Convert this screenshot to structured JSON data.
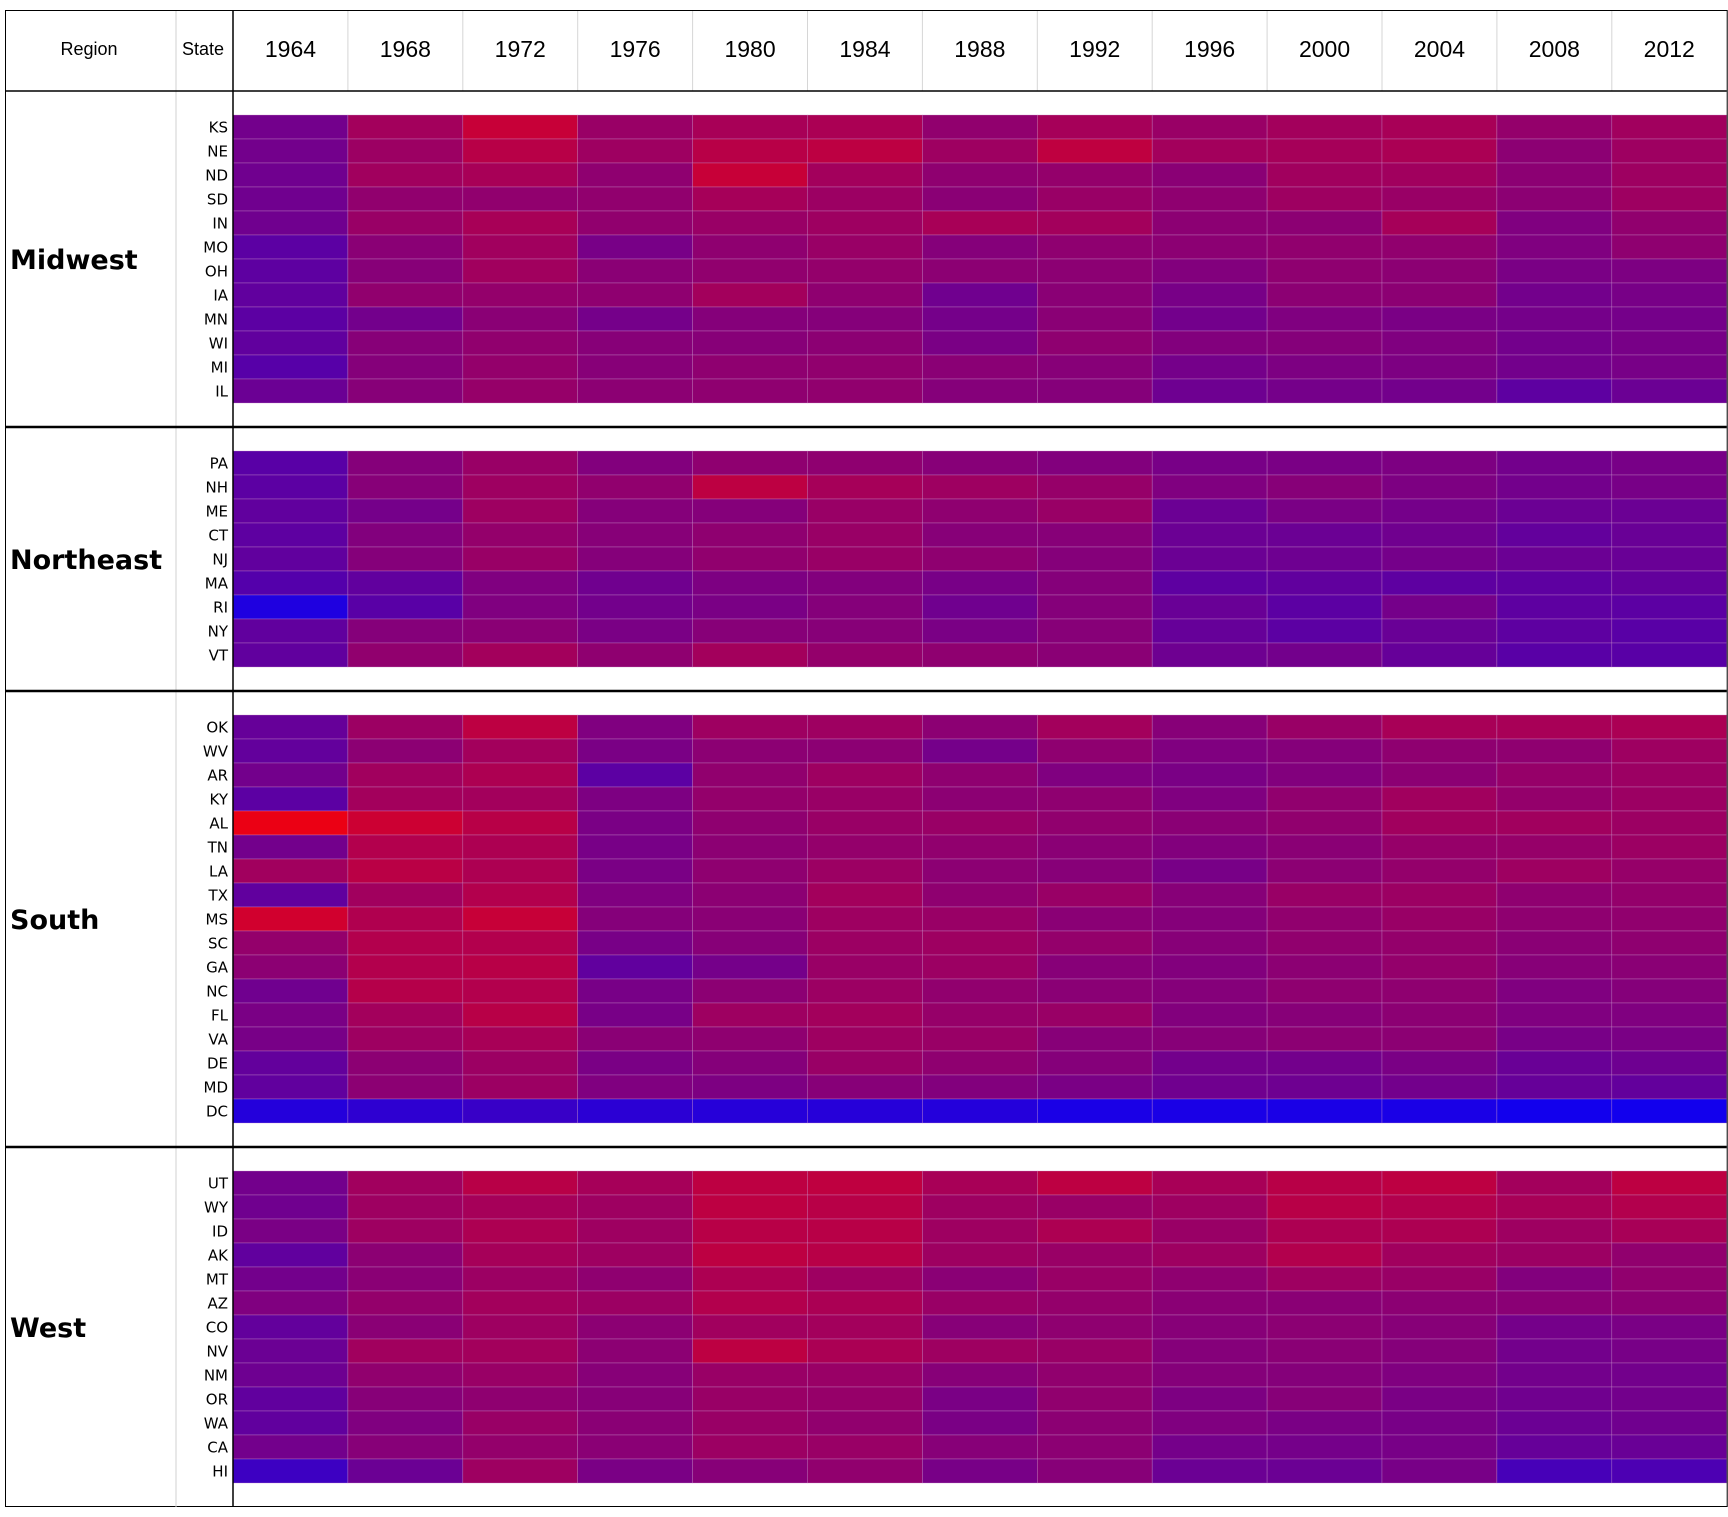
{
  "chart_data": {
    "type": "heatmap",
    "header": {
      "region_label": "Region",
      "state_label": "State"
    },
    "years": [
      "1964",
      "1968",
      "1972",
      "1976",
      "1980",
      "1984",
      "1988",
      "1992",
      "1996",
      "2000",
      "2004",
      "2008",
      "2012"
    ],
    "color_scale": {
      "low": "#0000ff",
      "high": "#ff0000"
    },
    "regions": [
      {
        "name": "Midwest",
        "states": [
          {
            "state": "KS",
            "values": [
              0.45,
              0.64,
              0.78,
              0.6,
              0.66,
              0.67,
              0.57,
              0.65,
              0.6,
              0.64,
              0.66,
              0.58,
              0.63
            ]
          },
          {
            "state": "NE",
            "values": [
              0.45,
              0.61,
              0.72,
              0.62,
              0.72,
              0.74,
              0.62,
              0.75,
              0.64,
              0.65,
              0.67,
              0.55,
              0.62
            ]
          },
          {
            "state": "ND",
            "values": [
              0.44,
              0.63,
              0.66,
              0.56,
              0.78,
              0.64,
              0.56,
              0.58,
              0.54,
              0.63,
              0.63,
              0.55,
              0.62
            ]
          },
          {
            "state": "SD",
            "values": [
              0.44,
              0.57,
              0.57,
              0.57,
              0.65,
              0.61,
              0.54,
              0.6,
              0.56,
              0.62,
              0.6,
              0.55,
              0.62
            ]
          },
          {
            "state": "IN",
            "values": [
              0.44,
              0.6,
              0.66,
              0.57,
              0.6,
              0.62,
              0.66,
              0.64,
              0.55,
              0.55,
              0.65,
              0.5,
              0.57
            ]
          },
          {
            "state": "MO",
            "values": [
              0.36,
              0.54,
              0.63,
              0.47,
              0.56,
              0.6,
              0.52,
              0.56,
              0.55,
              0.57,
              0.57,
              0.5,
              0.56
            ]
          },
          {
            "state": "OH",
            "values": [
              0.37,
              0.53,
              0.63,
              0.54,
              0.57,
              0.58,
              0.55,
              0.55,
              0.51,
              0.56,
              0.55,
              0.48,
              0.49
            ]
          },
          {
            "state": "IA",
            "values": [
              0.38,
              0.57,
              0.58,
              0.56,
              0.64,
              0.56,
              0.44,
              0.54,
              0.47,
              0.55,
              0.55,
              0.45,
              0.47
            ]
          },
          {
            "state": "MN",
            "values": [
              0.36,
              0.45,
              0.54,
              0.46,
              0.52,
              0.52,
              0.46,
              0.54,
              0.45,
              0.5,
              0.48,
              0.46,
              0.46
            ]
          },
          {
            "state": "WI",
            "values": [
              0.38,
              0.53,
              0.57,
              0.53,
              0.53,
              0.55,
              0.48,
              0.56,
              0.51,
              0.52,
              0.5,
              0.45,
              0.47
            ]
          },
          {
            "state": "MI",
            "values": [
              0.34,
              0.52,
              0.58,
              0.53,
              0.56,
              0.57,
              0.54,
              0.53,
              0.46,
              0.49,
              0.49,
              0.45,
              0.47
            ]
          },
          {
            "state": "IL",
            "values": [
              0.42,
              0.53,
              0.59,
              0.55,
              0.56,
              0.57,
              0.52,
              0.52,
              0.43,
              0.46,
              0.45,
              0.37,
              0.42
            ]
          }
        ]
      },
      {
        "name": "Northeast",
        "states": [
          {
            "state": "PA",
            "values": [
              0.35,
              0.52,
              0.6,
              0.51,
              0.56,
              0.56,
              0.53,
              0.51,
              0.47,
              0.48,
              0.49,
              0.45,
              0.47
            ]
          },
          {
            "state": "NH",
            "values": [
              0.36,
              0.53,
              0.62,
              0.57,
              0.74,
              0.65,
              0.62,
              0.59,
              0.5,
              0.53,
              0.49,
              0.45,
              0.47
            ]
          },
          {
            "state": "ME",
            "values": [
              0.38,
              0.46,
              0.62,
              0.52,
              0.52,
              0.6,
              0.56,
              0.6,
              0.42,
              0.48,
              0.46,
              0.42,
              0.42
            ]
          },
          {
            "state": "CT",
            "values": [
              0.37,
              0.51,
              0.58,
              0.53,
              0.56,
              0.6,
              0.53,
              0.53,
              0.42,
              0.42,
              0.44,
              0.39,
              0.41
            ]
          },
          {
            "state": "NJ",
            "values": [
              0.38,
              0.52,
              0.6,
              0.52,
              0.57,
              0.6,
              0.56,
              0.52,
              0.42,
              0.43,
              0.46,
              0.42,
              0.41
            ]
          },
          {
            "state": "MA",
            "values": [
              0.33,
              0.38,
              0.5,
              0.44,
              0.49,
              0.51,
              0.47,
              0.52,
              0.37,
              0.38,
              0.37,
              0.37,
              0.39
            ]
          },
          {
            "state": "RI",
            "values": [
              0.12,
              0.35,
              0.5,
              0.45,
              0.48,
              0.52,
              0.44,
              0.52,
              0.41,
              0.36,
              0.46,
              0.37,
              0.36
            ]
          },
          {
            "state": "NY",
            "values": [
              0.38,
              0.52,
              0.54,
              0.48,
              0.53,
              0.53,
              0.48,
              0.53,
              0.4,
              0.36,
              0.41,
              0.37,
              0.35
            ]
          },
          {
            "state": "VT",
            "values": [
              0.38,
              0.57,
              0.64,
              0.56,
              0.64,
              0.58,
              0.56,
              0.54,
              0.43,
              0.45,
              0.4,
              0.35,
              0.35
            ]
          }
        ]
      },
      {
        "name": "South",
        "states": [
          {
            "state": "OK",
            "values": [
              0.4,
              0.61,
              0.74,
              0.5,
              0.62,
              0.62,
              0.55,
              0.64,
              0.53,
              0.6,
              0.66,
              0.66,
              0.67
            ]
          },
          {
            "state": "WV",
            "values": [
              0.39,
              0.55,
              0.64,
              0.48,
              0.55,
              0.55,
              0.46,
              0.56,
              0.5,
              0.52,
              0.56,
              0.56,
              0.62
            ]
          },
          {
            "state": "AR",
            "values": [
              0.45,
              0.63,
              0.68,
              0.36,
              0.57,
              0.62,
              0.56,
              0.5,
              0.48,
              0.51,
              0.55,
              0.59,
              0.61
            ]
          },
          {
            "state": "KY",
            "values": [
              0.36,
              0.64,
              0.64,
              0.49,
              0.58,
              0.6,
              0.55,
              0.56,
              0.5,
              0.57,
              0.63,
              0.58,
              0.61
            ]
          },
          {
            "state": "AL",
            "values": [
              0.92,
              0.8,
              0.72,
              0.48,
              0.56,
              0.6,
              0.6,
              0.57,
              0.54,
              0.57,
              0.63,
              0.63,
              0.61
            ]
          },
          {
            "state": "TN",
            "values": [
              0.45,
              0.7,
              0.68,
              0.47,
              0.55,
              0.58,
              0.57,
              0.54,
              0.51,
              0.54,
              0.59,
              0.59,
              0.61
            ]
          },
          {
            "state": "LA",
            "values": [
              0.63,
              0.73,
              0.68,
              0.48,
              0.56,
              0.61,
              0.55,
              0.53,
              0.47,
              0.55,
              0.58,
              0.62,
              0.59
            ]
          },
          {
            "state": "TX",
            "values": [
              0.38,
              0.63,
              0.7,
              0.5,
              0.55,
              0.64,
              0.56,
              0.6,
              0.53,
              0.6,
              0.61,
              0.56,
              0.58
            ]
          },
          {
            "state": "MS",
            "values": [
              0.82,
              0.69,
              0.78,
              0.52,
              0.54,
              0.62,
              0.6,
              0.54,
              0.52,
              0.57,
              0.6,
              0.56,
              0.57
            ]
          },
          {
            "state": "SC",
            "values": [
              0.58,
              0.7,
              0.7,
              0.47,
              0.53,
              0.61,
              0.62,
              0.58,
              0.53,
              0.57,
              0.58,
              0.54,
              0.56
            ]
          },
          {
            "state": "GA",
            "values": [
              0.55,
              0.7,
              0.72,
              0.38,
              0.46,
              0.6,
              0.61,
              0.53,
              0.51,
              0.55,
              0.58,
              0.53,
              0.54
            ]
          },
          {
            "state": "NC",
            "values": [
              0.44,
              0.71,
              0.7,
              0.47,
              0.55,
              0.61,
              0.57,
              0.54,
              0.52,
              0.56,
              0.56,
              0.5,
              0.52
            ]
          },
          {
            "state": "FL",
            "values": [
              0.48,
              0.64,
              0.72,
              0.47,
              0.62,
              0.64,
              0.59,
              0.6,
              0.51,
              0.53,
              0.55,
              0.5,
              0.5
            ]
          },
          {
            "state": "VA",
            "values": [
              0.47,
              0.62,
              0.66,
              0.54,
              0.56,
              0.62,
              0.6,
              0.53,
              0.53,
              0.55,
              0.55,
              0.47,
              0.48
            ]
          },
          {
            "state": "DE",
            "values": [
              0.39,
              0.55,
              0.61,
              0.48,
              0.52,
              0.6,
              0.56,
              0.52,
              0.45,
              0.45,
              0.48,
              0.41,
              0.43
            ]
          },
          {
            "state": "MD",
            "values": [
              0.38,
              0.55,
              0.61,
              0.5,
              0.49,
              0.53,
              0.51,
              0.48,
              0.44,
              0.43,
              0.45,
              0.4,
              0.39
            ]
          },
          {
            "state": "DC",
            "values": [
              0.14,
              0.18,
              0.22,
              0.17,
              0.15,
              0.15,
              0.14,
              0.1,
              0.1,
              0.1,
              0.1,
              0.07,
              0.07
            ]
          }
        ]
      },
      {
        "name": "West",
        "states": [
          {
            "state": "UT",
            "values": [
              0.45,
              0.63,
              0.72,
              0.65,
              0.74,
              0.75,
              0.66,
              0.74,
              0.66,
              0.72,
              0.74,
              0.64,
              0.74
            ]
          },
          {
            "state": "WY",
            "values": [
              0.44,
              0.62,
              0.65,
              0.62,
              0.74,
              0.72,
              0.62,
              0.6,
              0.62,
              0.72,
              0.7,
              0.66,
              0.7
            ]
          },
          {
            "state": "ID",
            "values": [
              0.48,
              0.62,
              0.68,
              0.62,
              0.72,
              0.72,
              0.62,
              0.68,
              0.6,
              0.68,
              0.68,
              0.62,
              0.66
            ]
          },
          {
            "state": "AK",
            "values": [
              0.38,
              0.55,
              0.65,
              0.62,
              0.74,
              0.72,
              0.62,
              0.6,
              0.62,
              0.7,
              0.63,
              0.61,
              0.57
            ]
          },
          {
            "state": "MT",
            "values": [
              0.45,
              0.54,
              0.61,
              0.56,
              0.68,
              0.62,
              0.54,
              0.6,
              0.56,
              0.62,
              0.6,
              0.51,
              0.57
            ]
          },
          {
            "state": "AZ",
            "values": [
              0.5,
              0.58,
              0.64,
              0.61,
              0.7,
              0.67,
              0.6,
              0.58,
              0.54,
              0.54,
              0.55,
              0.54,
              0.55
            ]
          },
          {
            "state": "CO",
            "values": [
              0.39,
              0.54,
              0.62,
              0.55,
              0.63,
              0.64,
              0.53,
              0.56,
              0.53,
              0.55,
              0.53,
              0.46,
              0.48
            ]
          },
          {
            "state": "NV",
            "values": [
              0.42,
              0.63,
              0.64,
              0.55,
              0.74,
              0.67,
              0.62,
              0.6,
              0.52,
              0.54,
              0.52,
              0.45,
              0.47
            ]
          },
          {
            "state": "NM",
            "values": [
              0.43,
              0.57,
              0.6,
              0.53,
              0.6,
              0.6,
              0.53,
              0.57,
              0.52,
              0.52,
              0.5,
              0.45,
              0.45
            ]
          },
          {
            "state": "OR",
            "values": [
              0.38,
              0.53,
              0.56,
              0.53,
              0.6,
              0.59,
              0.48,
              0.57,
              0.49,
              0.53,
              0.48,
              0.44,
              0.45
            ]
          },
          {
            "state": "WA",
            "values": [
              0.38,
              0.5,
              0.6,
              0.54,
              0.6,
              0.57,
              0.48,
              0.55,
              0.5,
              0.48,
              0.47,
              0.42,
              0.44
            ]
          },
          {
            "state": "CA",
            "values": [
              0.45,
              0.53,
              0.58,
              0.54,
              0.61,
              0.6,
              0.53,
              0.55,
              0.46,
              0.46,
              0.47,
              0.4,
              0.41
            ]
          },
          {
            "state": "HI",
            "values": [
              0.24,
              0.42,
              0.62,
              0.48,
              0.53,
              0.57,
              0.47,
              0.53,
              0.42,
              0.42,
              0.47,
              0.28,
              0.3
            ]
          }
        ]
      }
    ]
  }
}
